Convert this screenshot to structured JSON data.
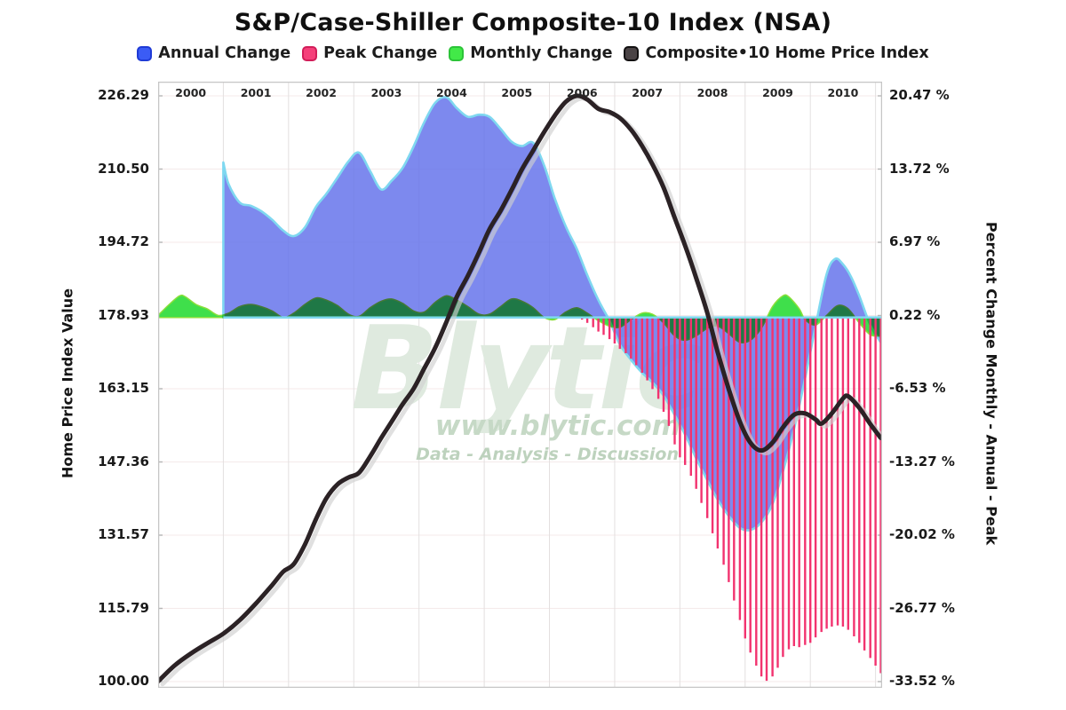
{
  "title": "S&P/Case-Shiller Composite-10 Index (NSA)",
  "legend": {
    "items": [
      {
        "label": "Annual Change",
        "color": "#3b5cf5",
        "border": "#1f3bd6"
      },
      {
        "label": "Peak Change",
        "color": "#f5407a",
        "border": "#d21d59"
      },
      {
        "label": "Monthly Change",
        "color": "#42e948",
        "border": "#2cc438"
      },
      {
        "label": "Composite•10 Home Price Index",
        "color": "#4a4345",
        "border": "#121011"
      }
    ]
  },
  "watermark": {
    "brand": "Blytic",
    "url": "www.blytic.com",
    "tagline": "Data - Analysis - Discussion",
    "brand_color": "#dfeadf",
    "url_color": "#c6d9c6",
    "tagline_color": "#bdd2bd"
  },
  "axes": {
    "left": {
      "title": "Home Price Index Value",
      "ticks": [
        "226.29",
        "210.50",
        "194.72",
        "178.93",
        "163.15",
        "147.36",
        "131.57",
        "115.79",
        "100.00"
      ]
    },
    "right": {
      "title": "Percent Change Monthly - Annual - Peak",
      "ticks": [
        "20.47 %",
        "13.72 %",
        "6.97 %",
        "0.22 %",
        "-6.53 %",
        "-13.27 %",
        "-20.02 %",
        "-26.77 %",
        "-33.52 %"
      ]
    },
    "top_years": [
      "2000",
      "2001",
      "2002",
      "2003",
      "2004",
      "2005",
      "2006",
      "2007",
      "2008",
      "2009",
      "2010"
    ]
  },
  "colors": {
    "annual_fill": "rgba(99,113,235,0.83)",
    "annual_edge": "#7fd8f0",
    "peak_bar": "#f2336f",
    "monthly_fill": "#3fdf4b",
    "monthly_edge": "#8adf3a",
    "index_line": "#2b2225",
    "index_line_shadow": "#cfcfcf",
    "grid_v": "#e3e0e0",
    "grid_h": "#f4eaea",
    "plot_border": "#c6c6c6"
  },
  "chart_data": {
    "type": "mixed: area + bar + line",
    "title": "S&P/Case-Shiller Composite-10 Index (NSA)",
    "x_domain": [
      2000,
      2011.1
    ],
    "x_tick_years": [
      2000,
      2001,
      2002,
      2003,
      2004,
      2005,
      2006,
      2007,
      2008,
      2009,
      2010
    ],
    "left_axis": {
      "label": "Home Price Index Value",
      "range": [
        100.0,
        226.29
      ],
      "ticks": [
        226.29,
        210.5,
        194.72,
        178.93,
        163.15,
        147.36,
        131.57,
        115.79,
        100.0
      ]
    },
    "right_axis": {
      "label": "Percent Change Monthly - Annual - Peak",
      "range": [
        -33.52,
        20.47
      ],
      "ticks": [
        20.47,
        13.72,
        6.97,
        0.22,
        -6.53,
        -13.27,
        -20.02,
        -26.77,
        -33.52
      ]
    },
    "grid": true,
    "legend_position": "top",
    "series": [
      {
        "name": "Annual Change",
        "type": "area",
        "axis": "right_pct",
        "points": [
          [
            2001.0,
            14.3
          ],
          [
            2001.08,
            12.3
          ],
          [
            2001.25,
            10.6
          ],
          [
            2001.42,
            10.3
          ],
          [
            2001.58,
            9.8
          ],
          [
            2001.75,
            9.0
          ],
          [
            2001.92,
            8.0
          ],
          [
            2002.08,
            7.5
          ],
          [
            2002.25,
            8.3
          ],
          [
            2002.42,
            10.2
          ],
          [
            2002.58,
            11.4
          ],
          [
            2002.75,
            12.9
          ],
          [
            2002.92,
            14.4
          ],
          [
            2003.08,
            15.2
          ],
          [
            2003.25,
            13.5
          ],
          [
            2003.42,
            11.8
          ],
          [
            2003.58,
            12.6
          ],
          [
            2003.75,
            13.8
          ],
          [
            2003.92,
            15.8
          ],
          [
            2004.08,
            18.0
          ],
          [
            2004.25,
            19.8
          ],
          [
            2004.42,
            20.3
          ],
          [
            2004.58,
            19.3
          ],
          [
            2004.75,
            18.5
          ],
          [
            2004.92,
            18.7
          ],
          [
            2005.08,
            18.5
          ],
          [
            2005.25,
            17.4
          ],
          [
            2005.42,
            16.2
          ],
          [
            2005.58,
            15.8
          ],
          [
            2005.75,
            16.1
          ],
          [
            2005.92,
            14.0
          ],
          [
            2006.08,
            11.0
          ],
          [
            2006.25,
            8.4
          ],
          [
            2006.42,
            6.3
          ],
          [
            2006.58,
            3.9
          ],
          [
            2006.75,
            1.6
          ],
          [
            2006.92,
            -0.3
          ],
          [
            2007.08,
            -2.5
          ],
          [
            2007.25,
            -3.9
          ],
          [
            2007.42,
            -5.1
          ],
          [
            2007.58,
            -6.0
          ],
          [
            2007.75,
            -7.2
          ],
          [
            2007.92,
            -9.0
          ],
          [
            2008.08,
            -10.8
          ],
          [
            2008.25,
            -13.0
          ],
          [
            2008.42,
            -15.0
          ],
          [
            2008.58,
            -16.8
          ],
          [
            2008.75,
            -18.3
          ],
          [
            2008.92,
            -19.4
          ],
          [
            2009.08,
            -19.6
          ],
          [
            2009.25,
            -18.9
          ],
          [
            2009.42,
            -17.2
          ],
          [
            2009.58,
            -14.2
          ],
          [
            2009.75,
            -10.3
          ],
          [
            2009.92,
            -5.6
          ],
          [
            2010.08,
            -0.8
          ],
          [
            2010.25,
            4.0
          ],
          [
            2010.38,
            5.4
          ],
          [
            2010.5,
            4.9
          ],
          [
            2010.62,
            3.8
          ],
          [
            2010.75,
            2.0
          ],
          [
            2010.92,
            -0.7
          ],
          [
            2011.08,
            -2.3
          ]
        ]
      },
      {
        "name": "Peak Change",
        "type": "bar",
        "axis": "right_pct",
        "points": [
          [
            2006.5,
            -0.2
          ],
          [
            2006.58,
            -0.5
          ],
          [
            2006.67,
            -0.9
          ],
          [
            2006.75,
            -1.3
          ],
          [
            2006.83,
            -1.6
          ],
          [
            2006.92,
            -2.0
          ],
          [
            2007.0,
            -2.4
          ],
          [
            2007.08,
            -2.9
          ],
          [
            2007.17,
            -3.3
          ],
          [
            2007.25,
            -3.8
          ],
          [
            2007.33,
            -4.4
          ],
          [
            2007.42,
            -5.1
          ],
          [
            2007.5,
            -5.8
          ],
          [
            2007.58,
            -6.6
          ],
          [
            2007.67,
            -7.5
          ],
          [
            2007.75,
            -8.7
          ],
          [
            2007.83,
            -10.0
          ],
          [
            2007.92,
            -11.7
          ],
          [
            2008.0,
            -12.9
          ],
          [
            2008.08,
            -13.6
          ],
          [
            2008.17,
            -14.6
          ],
          [
            2008.25,
            -15.8
          ],
          [
            2008.33,
            -17.1
          ],
          [
            2008.42,
            -18.5
          ],
          [
            2008.5,
            -19.9
          ],
          [
            2008.58,
            -21.3
          ],
          [
            2008.67,
            -22.8
          ],
          [
            2008.75,
            -24.4
          ],
          [
            2008.83,
            -26.1
          ],
          [
            2008.92,
            -27.9
          ],
          [
            2009.0,
            -29.6
          ],
          [
            2009.08,
            -30.9
          ],
          [
            2009.17,
            -32.1
          ],
          [
            2009.25,
            -33.1
          ],
          [
            2009.33,
            -33.5
          ],
          [
            2009.42,
            -33.1
          ],
          [
            2009.5,
            -32.3
          ],
          [
            2009.58,
            -31.3
          ],
          [
            2009.67,
            -30.6
          ],
          [
            2009.75,
            -30.3
          ],
          [
            2009.83,
            -30.4
          ],
          [
            2009.92,
            -30.2
          ],
          [
            2010.0,
            -30.0
          ],
          [
            2010.08,
            -29.5
          ],
          [
            2010.17,
            -29.0
          ],
          [
            2010.25,
            -28.7
          ],
          [
            2010.33,
            -28.5
          ],
          [
            2010.42,
            -28.4
          ],
          [
            2010.5,
            -28.5
          ],
          [
            2010.58,
            -28.8
          ],
          [
            2010.67,
            -29.4
          ],
          [
            2010.75,
            -30.0
          ],
          [
            2010.83,
            -30.7
          ],
          [
            2010.92,
            -31.4
          ],
          [
            2011.0,
            -32.1
          ],
          [
            2011.08,
            -32.8
          ]
        ]
      },
      {
        "name": "Monthly Change",
        "type": "area",
        "axis": "right_pct",
        "points": [
          [
            2000.0,
            0.2
          ],
          [
            2000.17,
            1.2
          ],
          [
            2000.33,
            2.0
          ],
          [
            2000.42,
            1.9
          ],
          [
            2000.58,
            1.2
          ],
          [
            2000.75,
            0.8
          ],
          [
            2000.92,
            0.2
          ],
          [
            2001.08,
            0.4
          ],
          [
            2001.25,
            1.0
          ],
          [
            2001.42,
            1.2
          ],
          [
            2001.58,
            1.0
          ],
          [
            2001.75,
            0.6
          ],
          [
            2001.92,
            0.0
          ],
          [
            2002.08,
            0.4
          ],
          [
            2002.25,
            1.2
          ],
          [
            2002.42,
            1.8
          ],
          [
            2002.58,
            1.6
          ],
          [
            2002.75,
            1.1
          ],
          [
            2002.92,
            0.3
          ],
          [
            2003.08,
            0.1
          ],
          [
            2003.25,
            0.9
          ],
          [
            2003.42,
            1.5
          ],
          [
            2003.58,
            1.7
          ],
          [
            2003.75,
            1.3
          ],
          [
            2003.92,
            0.6
          ],
          [
            2004.08,
            0.5
          ],
          [
            2004.25,
            1.4
          ],
          [
            2004.42,
            2.0
          ],
          [
            2004.58,
            1.6
          ],
          [
            2004.75,
            1.0
          ],
          [
            2004.92,
            0.3
          ],
          [
            2005.08,
            0.3
          ],
          [
            2005.25,
            1.0
          ],
          [
            2005.42,
            1.7
          ],
          [
            2005.58,
            1.5
          ],
          [
            2005.75,
            0.9
          ],
          [
            2005.92,
            0.0
          ],
          [
            2006.08,
            -0.2
          ],
          [
            2006.25,
            0.5
          ],
          [
            2006.42,
            0.9
          ],
          [
            2006.58,
            0.4
          ],
          [
            2006.75,
            -0.3
          ],
          [
            2006.92,
            -0.8
          ],
          [
            2007.08,
            -0.9
          ],
          [
            2007.25,
            -0.2
          ],
          [
            2007.42,
            0.4
          ],
          [
            2007.58,
            0.3
          ],
          [
            2007.75,
            -0.5
          ],
          [
            2007.92,
            -1.7
          ],
          [
            2008.08,
            -2.1
          ],
          [
            2008.25,
            -1.7
          ],
          [
            2008.42,
            -1.0
          ],
          [
            2008.58,
            -0.8
          ],
          [
            2008.75,
            -1.5
          ],
          [
            2008.92,
            -2.3
          ],
          [
            2009.08,
            -2.1
          ],
          [
            2009.25,
            -1.0
          ],
          [
            2009.42,
            1.0
          ],
          [
            2009.58,
            2.0
          ],
          [
            2009.67,
            1.9
          ],
          [
            2009.83,
            0.8
          ],
          [
            2009.92,
            -0.2
          ],
          [
            2010.08,
            -0.7
          ],
          [
            2010.25,
            0.2
          ],
          [
            2010.42,
            1.1
          ],
          [
            2010.58,
            0.8
          ],
          [
            2010.75,
            -0.5
          ],
          [
            2010.92,
            -1.6
          ],
          [
            2011.08,
            -1.7
          ]
        ]
      },
      {
        "name": "Composite-10 Home Price Index",
        "type": "line",
        "axis": "left_index",
        "points": [
          [
            2000.0,
            100.0
          ],
          [
            2000.25,
            103.4
          ],
          [
            2000.5,
            106.0
          ],
          [
            2000.75,
            108.2
          ],
          [
            2001.0,
            110.3
          ],
          [
            2001.25,
            113.2
          ],
          [
            2001.5,
            116.8
          ],
          [
            2001.75,
            120.8
          ],
          [
            2001.92,
            123.7
          ],
          [
            2002.08,
            125.3
          ],
          [
            2002.25,
            129.5
          ],
          [
            2002.42,
            135.0
          ],
          [
            2002.58,
            139.5
          ],
          [
            2002.75,
            142.5
          ],
          [
            2002.92,
            144.0
          ],
          [
            2003.08,
            145.0
          ],
          [
            2003.25,
            148.5
          ],
          [
            2003.42,
            152.5
          ],
          [
            2003.58,
            156.0
          ],
          [
            2003.75,
            159.8
          ],
          [
            2003.92,
            163.2
          ],
          [
            2004.08,
            167.5
          ],
          [
            2004.25,
            172.0
          ],
          [
            2004.42,
            177.5
          ],
          [
            2004.58,
            183.0
          ],
          [
            2004.75,
            187.5
          ],
          [
            2004.92,
            192.5
          ],
          [
            2005.08,
            197.5
          ],
          [
            2005.25,
            201.5
          ],
          [
            2005.42,
            206.0
          ],
          [
            2005.58,
            210.5
          ],
          [
            2005.75,
            214.5
          ],
          [
            2005.92,
            218.5
          ],
          [
            2006.08,
            222.0
          ],
          [
            2006.25,
            225.0
          ],
          [
            2006.42,
            226.3
          ],
          [
            2006.58,
            225.5
          ],
          [
            2006.75,
            223.5
          ],
          [
            2006.92,
            222.8
          ],
          [
            2007.08,
            221.5
          ],
          [
            2007.25,
            219.0
          ],
          [
            2007.42,
            215.5
          ],
          [
            2007.58,
            211.5
          ],
          [
            2007.75,
            206.5
          ],
          [
            2007.92,
            200.0
          ],
          [
            2008.08,
            194.0
          ],
          [
            2008.25,
            187.0
          ],
          [
            2008.42,
            179.5
          ],
          [
            2008.58,
            171.0
          ],
          [
            2008.75,
            163.0
          ],
          [
            2008.92,
            156.0
          ],
          [
            2009.08,
            151.5
          ],
          [
            2009.25,
            149.8
          ],
          [
            2009.42,
            151.5
          ],
          [
            2009.58,
            154.8
          ],
          [
            2009.75,
            157.5
          ],
          [
            2009.92,
            157.8
          ],
          [
            2010.08,
            156.5
          ],
          [
            2010.17,
            155.6
          ],
          [
            2010.33,
            157.8
          ],
          [
            2010.5,
            161.0
          ],
          [
            2010.58,
            161.5
          ],
          [
            2010.75,
            159.0
          ],
          [
            2010.92,
            155.5
          ],
          [
            2011.08,
            152.5
          ]
        ]
      }
    ]
  }
}
